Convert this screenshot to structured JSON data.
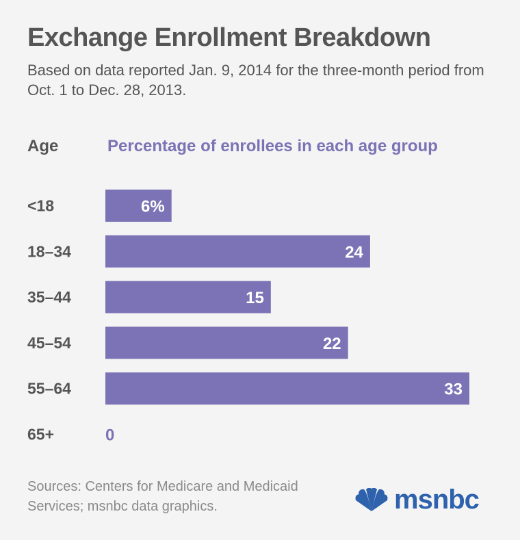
{
  "title": "Exchange Enrollment Breakdown",
  "subtitle": "Based on data reported Jan. 9, 2014 for the three-month period from Oct. 1 to Dec. 28, 2013.",
  "column_headers": {
    "age": "Age",
    "percentage": "Percentage of enrollees in each age group"
  },
  "source": "Sources: Centers for Medicare and Medicaid Services; msnbc data graphics.",
  "logo": {
    "text": "msnbc",
    "icon": "peacock-icon"
  },
  "colors": {
    "bar": "#7b73b5",
    "bar_label": "#ffffff",
    "zero_label": "#7b73b5",
    "text": "#555555",
    "source": "#8a8a8a",
    "logo": "#2f62ad"
  },
  "chart_data": {
    "type": "bar",
    "orientation": "horizontal",
    "title": "Exchange Enrollment Breakdown",
    "xlabel": "Percentage of enrollees in each age group",
    "ylabel": "Age",
    "categories": [
      "<18",
      "18–34",
      "35–44",
      "45–54",
      "55–64",
      "65+"
    ],
    "values": [
      6,
      24,
      15,
      22,
      33,
      0
    ],
    "data_labels": [
      "6%",
      "24",
      "15",
      "22",
      "33",
      "0"
    ],
    "unit": "%",
    "xlim": [
      0,
      33
    ],
    "grid": false,
    "legend": "none"
  }
}
